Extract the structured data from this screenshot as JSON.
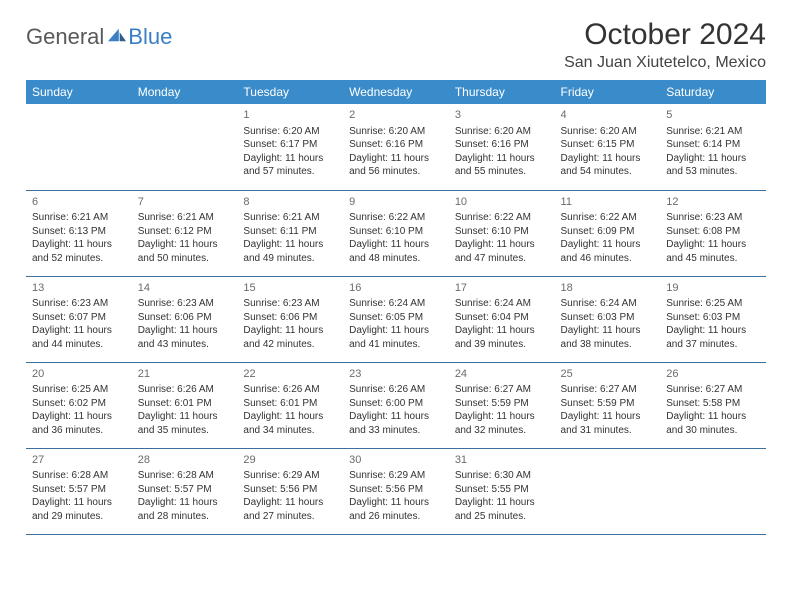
{
  "brand": {
    "name1": "General",
    "name2": "Blue"
  },
  "title": "October 2024",
  "location": "San Juan Xiutetelco, Mexico",
  "headerColor": "#3a8bc9",
  "borderColor": "#3a6f9e",
  "dayNames": [
    "Sunday",
    "Monday",
    "Tuesday",
    "Wednesday",
    "Thursday",
    "Friday",
    "Saturday"
  ],
  "weeks": [
    [
      null,
      null,
      {
        "n": "1",
        "sr": "Sunrise: 6:20 AM",
        "ss": "Sunset: 6:17 PM",
        "dl": "Daylight: 11 hours and 57 minutes."
      },
      {
        "n": "2",
        "sr": "Sunrise: 6:20 AM",
        "ss": "Sunset: 6:16 PM",
        "dl": "Daylight: 11 hours and 56 minutes."
      },
      {
        "n": "3",
        "sr": "Sunrise: 6:20 AM",
        "ss": "Sunset: 6:16 PM",
        "dl": "Daylight: 11 hours and 55 minutes."
      },
      {
        "n": "4",
        "sr": "Sunrise: 6:20 AM",
        "ss": "Sunset: 6:15 PM",
        "dl": "Daylight: 11 hours and 54 minutes."
      },
      {
        "n": "5",
        "sr": "Sunrise: 6:21 AM",
        "ss": "Sunset: 6:14 PM",
        "dl": "Daylight: 11 hours and 53 minutes."
      }
    ],
    [
      {
        "n": "6",
        "sr": "Sunrise: 6:21 AM",
        "ss": "Sunset: 6:13 PM",
        "dl": "Daylight: 11 hours and 52 minutes."
      },
      {
        "n": "7",
        "sr": "Sunrise: 6:21 AM",
        "ss": "Sunset: 6:12 PM",
        "dl": "Daylight: 11 hours and 50 minutes."
      },
      {
        "n": "8",
        "sr": "Sunrise: 6:21 AM",
        "ss": "Sunset: 6:11 PM",
        "dl": "Daylight: 11 hours and 49 minutes."
      },
      {
        "n": "9",
        "sr": "Sunrise: 6:22 AM",
        "ss": "Sunset: 6:10 PM",
        "dl": "Daylight: 11 hours and 48 minutes."
      },
      {
        "n": "10",
        "sr": "Sunrise: 6:22 AM",
        "ss": "Sunset: 6:10 PM",
        "dl": "Daylight: 11 hours and 47 minutes."
      },
      {
        "n": "11",
        "sr": "Sunrise: 6:22 AM",
        "ss": "Sunset: 6:09 PM",
        "dl": "Daylight: 11 hours and 46 minutes."
      },
      {
        "n": "12",
        "sr": "Sunrise: 6:23 AM",
        "ss": "Sunset: 6:08 PM",
        "dl": "Daylight: 11 hours and 45 minutes."
      }
    ],
    [
      {
        "n": "13",
        "sr": "Sunrise: 6:23 AM",
        "ss": "Sunset: 6:07 PM",
        "dl": "Daylight: 11 hours and 44 minutes."
      },
      {
        "n": "14",
        "sr": "Sunrise: 6:23 AM",
        "ss": "Sunset: 6:06 PM",
        "dl": "Daylight: 11 hours and 43 minutes."
      },
      {
        "n": "15",
        "sr": "Sunrise: 6:23 AM",
        "ss": "Sunset: 6:06 PM",
        "dl": "Daylight: 11 hours and 42 minutes."
      },
      {
        "n": "16",
        "sr": "Sunrise: 6:24 AM",
        "ss": "Sunset: 6:05 PM",
        "dl": "Daylight: 11 hours and 41 minutes."
      },
      {
        "n": "17",
        "sr": "Sunrise: 6:24 AM",
        "ss": "Sunset: 6:04 PM",
        "dl": "Daylight: 11 hours and 39 minutes."
      },
      {
        "n": "18",
        "sr": "Sunrise: 6:24 AM",
        "ss": "Sunset: 6:03 PM",
        "dl": "Daylight: 11 hours and 38 minutes."
      },
      {
        "n": "19",
        "sr": "Sunrise: 6:25 AM",
        "ss": "Sunset: 6:03 PM",
        "dl": "Daylight: 11 hours and 37 minutes."
      }
    ],
    [
      {
        "n": "20",
        "sr": "Sunrise: 6:25 AM",
        "ss": "Sunset: 6:02 PM",
        "dl": "Daylight: 11 hours and 36 minutes."
      },
      {
        "n": "21",
        "sr": "Sunrise: 6:26 AM",
        "ss": "Sunset: 6:01 PM",
        "dl": "Daylight: 11 hours and 35 minutes."
      },
      {
        "n": "22",
        "sr": "Sunrise: 6:26 AM",
        "ss": "Sunset: 6:01 PM",
        "dl": "Daylight: 11 hours and 34 minutes."
      },
      {
        "n": "23",
        "sr": "Sunrise: 6:26 AM",
        "ss": "Sunset: 6:00 PM",
        "dl": "Daylight: 11 hours and 33 minutes."
      },
      {
        "n": "24",
        "sr": "Sunrise: 6:27 AM",
        "ss": "Sunset: 5:59 PM",
        "dl": "Daylight: 11 hours and 32 minutes."
      },
      {
        "n": "25",
        "sr": "Sunrise: 6:27 AM",
        "ss": "Sunset: 5:59 PM",
        "dl": "Daylight: 11 hours and 31 minutes."
      },
      {
        "n": "26",
        "sr": "Sunrise: 6:27 AM",
        "ss": "Sunset: 5:58 PM",
        "dl": "Daylight: 11 hours and 30 minutes."
      }
    ],
    [
      {
        "n": "27",
        "sr": "Sunrise: 6:28 AM",
        "ss": "Sunset: 5:57 PM",
        "dl": "Daylight: 11 hours and 29 minutes."
      },
      {
        "n": "28",
        "sr": "Sunrise: 6:28 AM",
        "ss": "Sunset: 5:57 PM",
        "dl": "Daylight: 11 hours and 28 minutes."
      },
      {
        "n": "29",
        "sr": "Sunrise: 6:29 AM",
        "ss": "Sunset: 5:56 PM",
        "dl": "Daylight: 11 hours and 27 minutes."
      },
      {
        "n": "30",
        "sr": "Sunrise: 6:29 AM",
        "ss": "Sunset: 5:56 PM",
        "dl": "Daylight: 11 hours and 26 minutes."
      },
      {
        "n": "31",
        "sr": "Sunrise: 6:30 AM",
        "ss": "Sunset: 5:55 PM",
        "dl": "Daylight: 11 hours and 25 minutes."
      },
      null,
      null
    ]
  ]
}
